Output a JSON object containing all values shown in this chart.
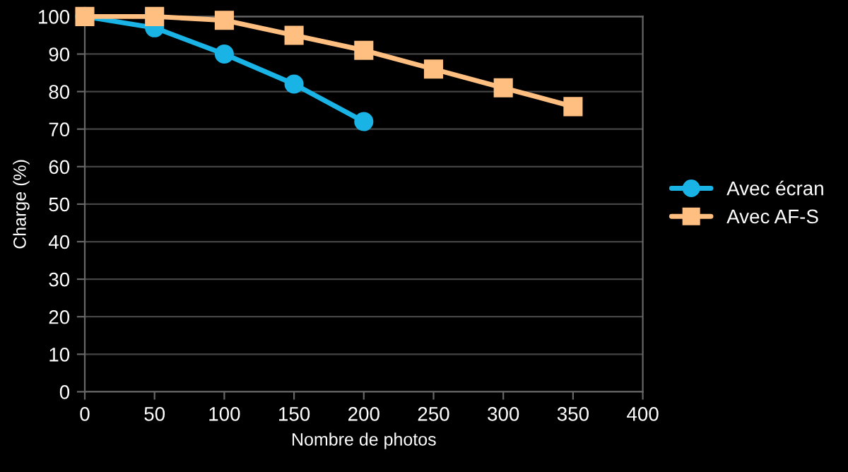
{
  "chart_data": {
    "type": "line",
    "xlabel": "Nombre de photos",
    "ylabel": "Charge (%)",
    "series": [
      {
        "name": "Avec écran",
        "color": "#1ab3e6",
        "marker": "circle",
        "x": [
          0,
          50,
          100,
          150,
          200
        ],
        "values": [
          100,
          97,
          90,
          82,
          72
        ]
      },
      {
        "name": "Avec AF-S",
        "color": "#ffbf80",
        "marker": "square",
        "x": [
          0,
          50,
          100,
          150,
          200,
          250,
          300,
          350
        ],
        "values": [
          100,
          100,
          99,
          95,
          91,
          86,
          81,
          76
        ]
      }
    ],
    "xlim": [
      0,
      400
    ],
    "xticks": [
      0,
      50,
      100,
      150,
      200,
      250,
      300,
      350,
      400
    ],
    "ylim": [
      0,
      100
    ],
    "yticks": [
      0,
      10,
      20,
      30,
      40,
      50,
      60,
      70,
      80,
      90,
      100
    ],
    "grid": "y",
    "legend": "right",
    "line_style": "solid"
  }
}
